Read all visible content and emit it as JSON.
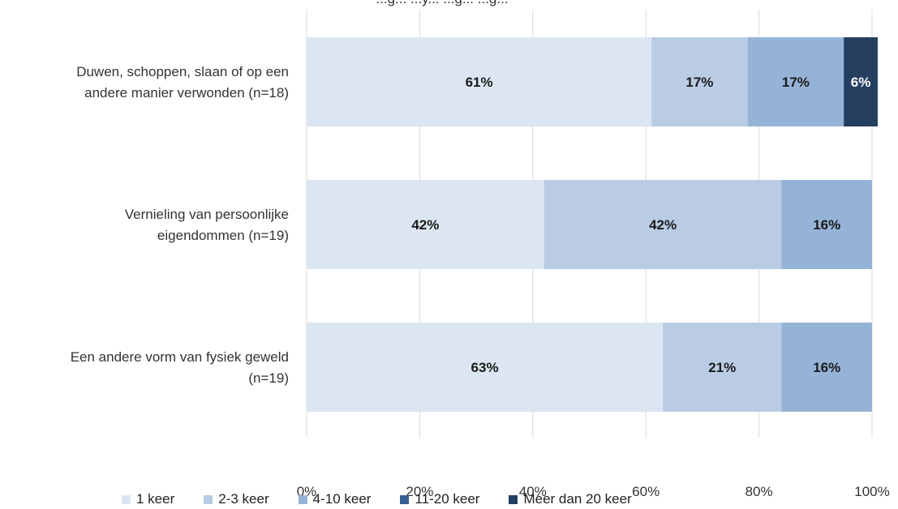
{
  "chart_data": {
    "type": "bar",
    "orientation": "horizontal",
    "stacked": true,
    "title": "...g... ...y... ...g... ...g...",
    "categories": [
      [
        "Duwen, schoppen, slaan of op een",
        "andere manier verwonden (n=18)"
      ],
      [
        "Vernieling van persoonlijke",
        "eigendommen (n=19)"
      ],
      [
        "Een andere vorm van fysiek geweld",
        "(n=19)"
      ]
    ],
    "series": [
      {
        "name": "1 keer",
        "color": "#dce6f2",
        "values": [
          61,
          42,
          63
        ],
        "labels": [
          "61%",
          "42%",
          "63%"
        ],
        "label_color": "#1a1a1a"
      },
      {
        "name": "2-3 keer",
        "color": "#b9cce4",
        "values": [
          17,
          42,
          21
        ],
        "labels": [
          "17%",
          "42%",
          "21%"
        ],
        "label_color": "#1a1a1a"
      },
      {
        "name": "4-10 keer",
        "color": "#95b3d7",
        "values": [
          17,
          16,
          16
        ],
        "labels": [
          "17%",
          "16%",
          "16%"
        ],
        "label_color": "#1a1a1a"
      },
      {
        "name": "11-20 keer",
        "color": "#376092",
        "values": [
          0,
          0,
          0
        ],
        "labels": [
          "",
          "",
          ""
        ],
        "label_color": "#ffffff"
      },
      {
        "name": "Meer dan 20 keer",
        "color": "#243f60",
        "values": [
          6,
          0,
          0
        ],
        "labels": [
          "6%",
          "",
          ""
        ],
        "label_color": "#ffffff"
      }
    ],
    "xlim": [
      0,
      100
    ],
    "xticks": [
      "0%",
      "20%",
      "40%",
      "60%",
      "80%",
      "100%"
    ],
    "grid": true,
    "legend_position": "bottom"
  }
}
